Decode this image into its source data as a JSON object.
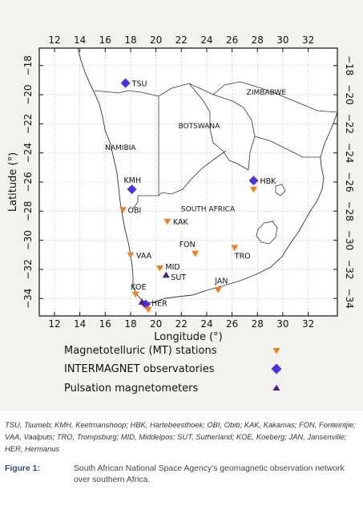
{
  "map": {
    "x_axis_title": "Longitude (°)",
    "y_axis_title": "Latitude (°)",
    "lon_ticks": [
      "12",
      "14",
      "16",
      "18",
      "20",
      "22",
      "24",
      "26",
      "28",
      "30",
      "32"
    ],
    "lat_ticks_left": [
      "−18",
      "−20",
      "−22",
      "−24",
      "−26",
      "−28",
      "−30",
      "−32",
      "−34"
    ],
    "lat_ticks_right": [
      "−18",
      "−20",
      "−22",
      "−24",
      "−26",
      "−28",
      "−30",
      "−32",
      "−34"
    ],
    "regions": {
      "zimbabwe": "ZIMBABWE",
      "botswana": "BOTSWANA",
      "namibia": "NAMIBIA",
      "south_africa": "SOUTH AFRICA"
    },
    "colors": {
      "mt": "#ef7f22",
      "intermagnet": "#4b2fe0",
      "pulsation": "#4b1f88"
    },
    "stations": [
      {
        "code": "TSU",
        "type": "intermagnet",
        "lon": 17.6,
        "lat": -19.2
      },
      {
        "code": "KMH",
        "type": "intermagnet",
        "lon": 18.1,
        "lat": -26.5
      },
      {
        "code": "HBK",
        "type": "intermagnet",
        "lon": 27.7,
        "lat": -25.9
      },
      {
        "code": "HER",
        "type": "intermagnet",
        "lon": 19.2,
        "lat": -34.4
      },
      {
        "code": "OBI",
        "type": "mt",
        "lon": 17.4,
        "lat": -27.9
      },
      {
        "code": "KAK",
        "type": "mt",
        "lon": 20.9,
        "lat": -28.7
      },
      {
        "code": "VAA",
        "type": "mt",
        "lon": 18.0,
        "lat": -31.0
      },
      {
        "code": "FON",
        "type": "mt",
        "lon": 23.1,
        "lat": -30.9
      },
      {
        "code": "TRO",
        "type": "mt",
        "lon": 26.2,
        "lat": -30.5
      },
      {
        "code": "MID",
        "type": "mt",
        "lon": 20.3,
        "lat": -31.9
      },
      {
        "code": "JAN",
        "type": "mt",
        "lon": 24.9,
        "lat": -33.4
      },
      {
        "code": "KOE",
        "type": "mt",
        "lon": 18.4,
        "lat": -33.7
      },
      {
        "code": "HBKMT",
        "type": "mt",
        "lon": 27.7,
        "lat": -26.5
      },
      {
        "code": "HERMT",
        "type": "mt",
        "lon": 19.4,
        "lat": -34.75
      },
      {
        "code": "SUT",
        "type": "pulsation",
        "lon": 20.8,
        "lat": -32.4
      },
      {
        "code": "HERP",
        "type": "pulsation",
        "lon": 18.9,
        "lat": -34.25
      }
    ]
  },
  "legend": {
    "mt": "Magnetotelluric (MT) stations",
    "intermagnet": "INTERMAGNET observatories",
    "pulsation": "Pulsation magnetometers"
  },
  "abbreviations": "TSU, Tsumeb; KMH, Keetmanshoop; HBK, Hartebeesthoek; OBI, Obib; KAK, Kakamas; FON, Fonteintjie; VAA, Vaalputs; TRO, Trompsburg; MID, Middelpos; SUT, Sutherland; KOE, Koeberg; JAN, Jansenville; HER, Hermanus",
  "figure": {
    "label": "Figure 1:",
    "caption": "South African National Space Agency’s geomagnetic observation network over southern Africa."
  }
}
